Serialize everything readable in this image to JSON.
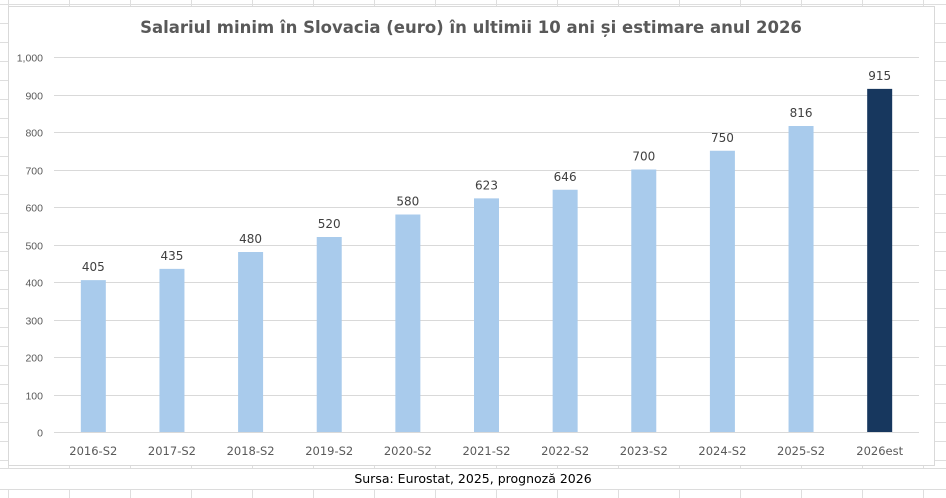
{
  "chart_data": {
    "type": "bar",
    "title": "Salariul minim în Slovacia (euro) în ultimii 10 ani și estimare anul 2026",
    "xlabel": "",
    "ylabel": "",
    "categories": [
      "2016-S2",
      "2017-S2",
      "2018-S2",
      "2019-S2",
      "2020-S2",
      "2021-S2",
      "2022-S2",
      "2023-S2",
      "2024-S2",
      "2025-S2",
      "2026est"
    ],
    "values": [
      405,
      435,
      480,
      520,
      580,
      623,
      646,
      700,
      750,
      816,
      915
    ],
    "data_labels": [
      "405",
      "435",
      "480",
      "520",
      "580",
      "623",
      "646",
      "700",
      "750",
      "816",
      "915"
    ],
    "ylim": [
      0,
      1000
    ],
    "yticks": [
      0,
      100,
      200,
      300,
      400,
      500,
      600,
      700,
      800,
      900,
      1000
    ],
    "ytick_labels": [
      "0",
      "100",
      "200",
      "300",
      "400",
      "500",
      "600",
      "700",
      "800",
      "900",
      "1,000"
    ],
    "grid": true,
    "legend": "none",
    "colors": {
      "historical": "#a9cbec",
      "estimate": "#17375e",
      "estimate_categories": [
        "2026est"
      ]
    }
  },
  "caption": "Sursa: Eurostat, 2025, prognoză 2026"
}
